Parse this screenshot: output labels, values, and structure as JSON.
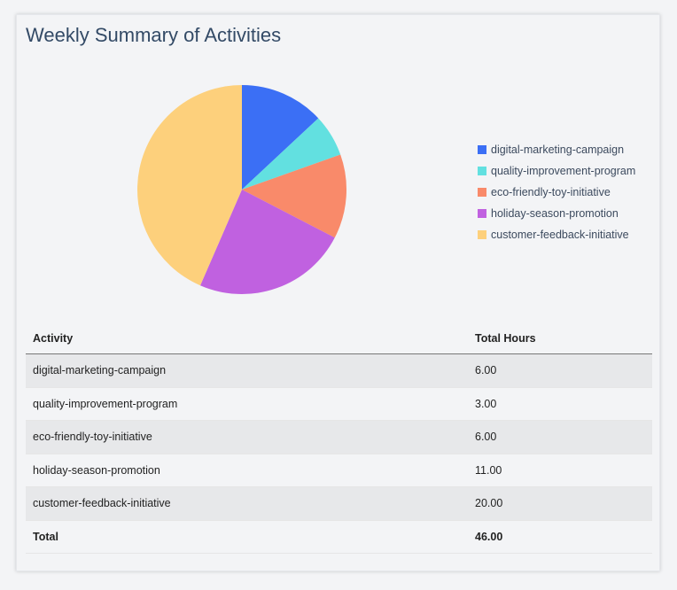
{
  "title": "Weekly Summary of Activities",
  "chart_data": {
    "type": "pie",
    "categories": [
      "digital-marketing-campaign",
      "quality-improvement-program",
      "eco-friendly-toy-initiative",
      "holiday-season-promotion",
      "customer-feedback-initiative"
    ],
    "values": [
      6,
      3,
      6,
      11,
      20
    ],
    "colors": [
      "#3b6ff5",
      "#62e0e0",
      "#f98a6a",
      "#c061e0",
      "#fdd07c"
    ],
    "legend": "right"
  },
  "table": {
    "headers": [
      "Activity",
      "Total Hours"
    ],
    "rows": [
      [
        "digital-marketing-campaign",
        "6.00"
      ],
      [
        "quality-improvement-program",
        "3.00"
      ],
      [
        "eco-friendly-toy-initiative",
        "6.00"
      ],
      [
        "holiday-season-promotion",
        "11.00"
      ],
      [
        "customer-feedback-initiative",
        "20.00"
      ]
    ],
    "total": [
      "Total",
      "46.00"
    ]
  }
}
